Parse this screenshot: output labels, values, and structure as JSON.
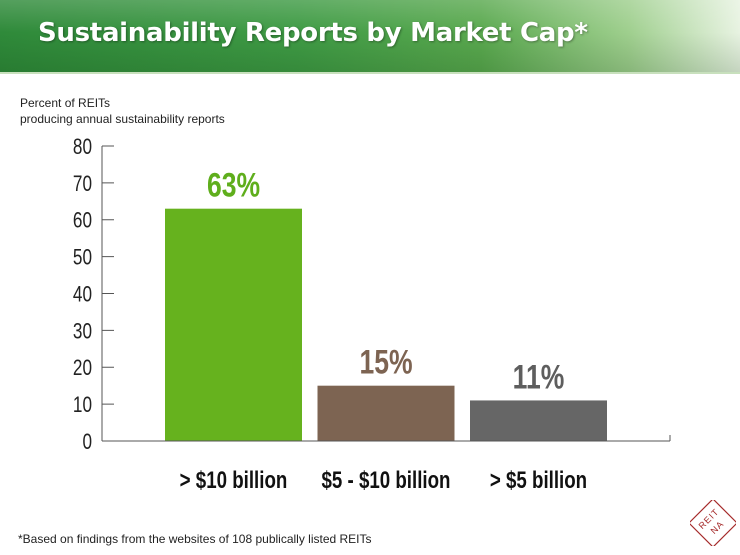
{
  "title": "Sustainability Reports by Market Cap*",
  "footnote": "*Based on findings from the websites of 108 publically listed REITs",
  "logo_text": "NAREIT",
  "colors": {
    "banner": "#3f9b45",
    "title_text": "#ffffff",
    "axis": "#555555"
  },
  "chart_data": {
    "type": "bar",
    "ylabel_lines": [
      "Percent of REITs",
      "producing annual sustainability reports"
    ],
    "xlabel": "",
    "ylim": [
      0,
      80
    ],
    "yticks": [
      0,
      10,
      20,
      30,
      40,
      50,
      60,
      70,
      80
    ],
    "grid": false,
    "legend": "none",
    "categories": [
      "> $10 billion",
      "$5 - $10 billion",
      "> $5 billion"
    ],
    "values": [
      63,
      15,
      11
    ],
    "data_labels": [
      "63%",
      "15%",
      "11%"
    ],
    "bar_colors": [
      "#66b21e",
      "#7d6452",
      "#666666"
    ],
    "label_colors": [
      "#5fae1c",
      "#7d6452",
      "#5e5e5e"
    ]
  }
}
